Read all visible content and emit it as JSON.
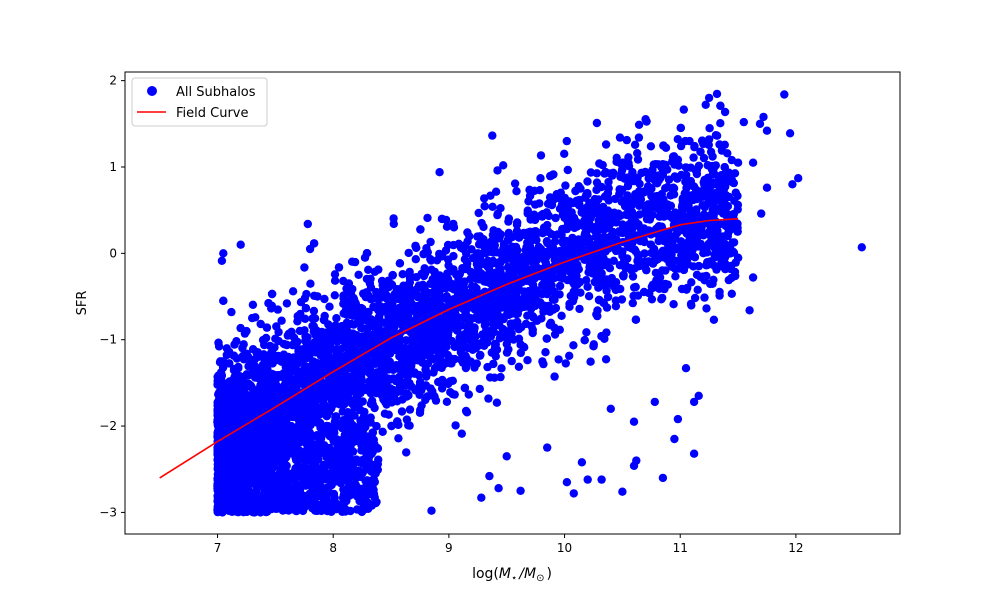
{
  "chart_data": {
    "type": "scatter",
    "xlabel_pre": "log(",
    "xlabel_m": "M",
    "xlabel_star": "⋆",
    "xlabel_slash": "/",
    "xlabel_sun": "⊙",
    "xlabel_post": ")",
    "ylabel": "SFR",
    "xlim": [
      6.2,
      12.9
    ],
    "ylim": [
      -3.25,
      2.1
    ],
    "xticks": [
      7,
      8,
      9,
      10,
      11,
      12
    ],
    "yticks": [
      -3,
      -2,
      -1,
      0,
      1,
      2
    ],
    "grid": false,
    "legend_position": "upper-left",
    "series": [
      {
        "name": "All Subhalos",
        "kind": "scatter",
        "color": "#0000ff",
        "density_model": {
          "x_range": [
            7.0,
            11.5
          ],
          "trend": [
            [
              7.0,
              -2.3
            ],
            [
              8.0,
              -1.45
            ],
            [
              9.0,
              -0.75
            ],
            [
              10.0,
              0.0
            ],
            [
              11.0,
              0.45
            ]
          ],
          "y_floor": -3.0,
          "n_points": 5000
        },
        "points": [
          [
            12.57,
            0.07
          ],
          [
            11.9,
            1.84
          ],
          [
            12.02,
            0.87
          ],
          [
            11.97,
            0.8
          ],
          [
            11.95,
            1.39
          ],
          [
            11.75,
            1.42
          ],
          [
            11.72,
            1.58
          ],
          [
            11.69,
            1.5
          ],
          [
            11.75,
            0.76
          ],
          [
            11.7,
            0.46
          ],
          [
            11.55,
            1.52
          ],
          [
            11.63,
            1.05
          ],
          [
            11.22,
            1.72
          ],
          [
            11.6,
            -0.66
          ],
          [
            11.63,
            -0.28
          ],
          [
            11.42,
            -0.31
          ],
          [
            11.16,
            -1.65
          ],
          [
            11.12,
            -1.72
          ],
          [
            11.12,
            -2.32
          ],
          [
            10.98,
            -1.92
          ],
          [
            10.95,
            -2.15
          ],
          [
            11.05,
            -1.33
          ],
          [
            10.85,
            -2.6
          ],
          [
            10.62,
            -2.4
          ],
          [
            10.6,
            -2.46
          ],
          [
            10.5,
            -2.76
          ],
          [
            10.32,
            -2.62
          ],
          [
            10.2,
            -2.62
          ],
          [
            10.08,
            -2.78
          ],
          [
            10.15,
            -2.42
          ],
          [
            9.85,
            -2.25
          ],
          [
            9.5,
            -2.35
          ],
          [
            9.43,
            -2.72
          ],
          [
            9.28,
            -2.83
          ],
          [
            9.35,
            -2.58
          ],
          [
            8.85,
            -2.98
          ],
          [
            8.92,
            -0.65
          ],
          [
            8.92,
            0.94
          ],
          [
            9.47,
            1.02
          ],
          [
            9.42,
            0.96
          ],
          [
            7.8,
            0.05
          ],
          [
            7.78,
            0.34
          ],
          [
            7.6,
            -0.58
          ],
          [
            7.3,
            -0.75
          ],
          [
            7.12,
            -0.68
          ],
          [
            7.08,
            -1.1
          ],
          [
            7.05,
            -1.25
          ],
          [
            7.25,
            -0.9
          ],
          [
            7.42,
            -0.98
          ],
          [
            10.3,
            1.04
          ],
          [
            10.45,
            1.06
          ],
          [
            11.08,
            1.3
          ],
          [
            11.25,
            1.32
          ],
          [
            11.36,
            1.19
          ],
          [
            11.5,
            1.05
          ],
          [
            10.78,
            -1.72
          ],
          [
            10.4,
            -1.8
          ],
          [
            10.6,
            -1.95
          ],
          [
            10.02,
            -2.65
          ],
          [
            9.62,
            -2.75
          ],
          [
            7.05,
            0.0
          ],
          [
            7.2,
            0.1
          ]
        ]
      },
      {
        "name": "Field Curve",
        "kind": "line",
        "color": "#ff0000",
        "x": [
          6.5,
          7.0,
          7.5,
          8.0,
          8.5,
          9.0,
          9.5,
          10.0,
          10.5,
          11.0,
          11.25,
          11.5
        ],
        "y": [
          -2.6,
          -2.18,
          -1.78,
          -1.37,
          -0.98,
          -0.65,
          -0.36,
          -0.1,
          0.13,
          0.33,
          0.38,
          0.4
        ]
      }
    ]
  }
}
